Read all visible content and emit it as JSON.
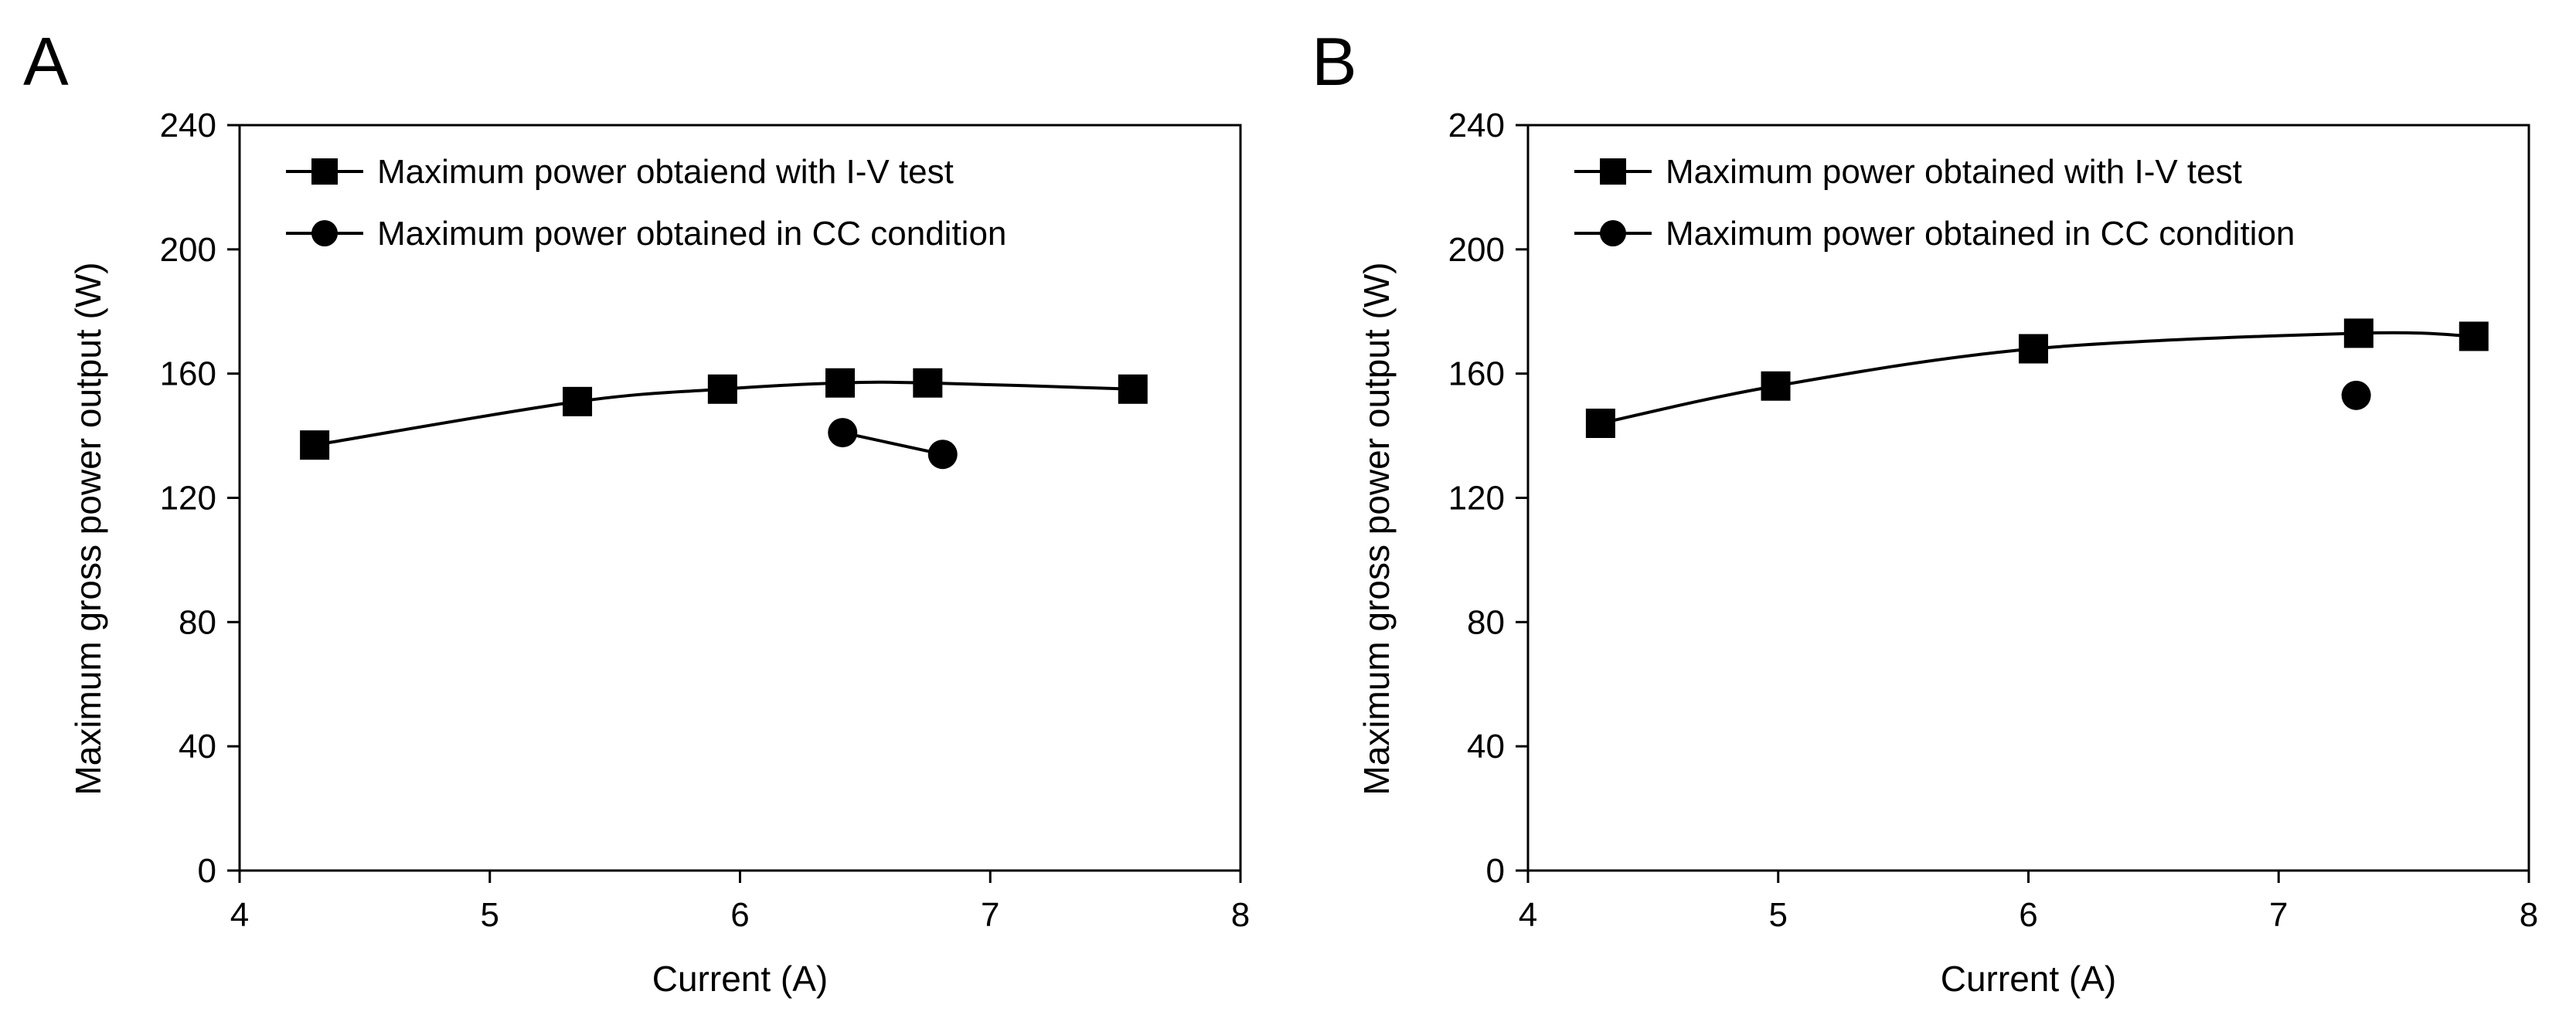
{
  "chart_data": [
    {
      "panel_label": "A",
      "type": "line",
      "xlabel": "Current (A)",
      "ylabel": "Maximum gross power output (W)",
      "xlim": [
        4,
        8
      ],
      "ylim": [
        0,
        240
      ],
      "xticks": [
        4,
        5,
        6,
        7,
        8
      ],
      "yticks": [
        0,
        40,
        80,
        120,
        160,
        200,
        240
      ],
      "grid": false,
      "legend_position": "top-left",
      "series": [
        {
          "name": "Maximum power obtaiend with I-V test",
          "marker": "square",
          "line": "smooth",
          "x": [
            4.3,
            5.35,
            5.93,
            6.4,
            6.75,
            7.57
          ],
          "y": [
            137,
            151,
            155,
            157,
            157,
            155
          ]
        },
        {
          "name": "Maximum power obtained in CC condition",
          "marker": "circle",
          "line": "straight",
          "x": [
            6.41,
            6.81
          ],
          "y": [
            141,
            134
          ]
        }
      ]
    },
    {
      "panel_label": "B",
      "type": "line",
      "xlabel": "Current (A)",
      "ylabel": "Maximum gross power output (W)",
      "xlim": [
        4,
        8
      ],
      "ylim": [
        0,
        240
      ],
      "xticks": [
        4,
        5,
        6,
        7,
        8
      ],
      "yticks": [
        0,
        40,
        80,
        120,
        160,
        200,
        240
      ],
      "grid": false,
      "legend_position": "top-left",
      "series": [
        {
          "name": "Maximum power obtained with I-V test",
          "marker": "square",
          "line": "smooth",
          "x": [
            4.29,
            4.99,
            6.02,
            7.32,
            7.78
          ],
          "y": [
            144,
            156,
            168,
            173,
            172
          ]
        },
        {
          "name": "Maximum power obtained in CC condition",
          "marker": "circle",
          "line": "none",
          "x": [
            7.31
          ],
          "y": [
            153
          ]
        }
      ]
    }
  ]
}
